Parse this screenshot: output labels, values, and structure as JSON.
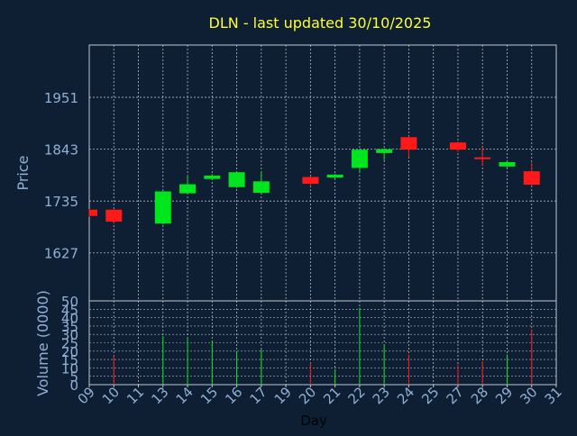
{
  "colors": {
    "background": "#0f1f33",
    "title": "#ffff33",
    "axis_text": "#8fb0d6",
    "frame": "#bfc7d1",
    "grid": "#b0b8c4",
    "up": "#00e61e",
    "down": "#ff1a1a"
  },
  "chart_data": {
    "type": "candlestick",
    "title": "DLN - last updated 30/10/2025",
    "price_panel": {
      "ylabel": "Price",
      "ylim": [
        1527,
        2060
      ],
      "yticks": [
        1627,
        1735,
        1843,
        1951
      ]
    },
    "volume_panel": {
      "ylabel": "Volume (0000)",
      "ylim": [
        0,
        50
      ],
      "yticks": [
        0,
        5,
        10,
        15,
        20,
        25,
        30,
        35,
        40,
        45,
        50
      ]
    },
    "xlabel": "Day",
    "xticks": [
      "09",
      "10",
      "11",
      "13",
      "14",
      "15",
      "16",
      "17",
      "19",
      "20",
      "21",
      "22",
      "23",
      "24",
      "25",
      "27",
      "28",
      "29",
      "30",
      "31"
    ],
    "grid": true,
    "candles": [
      {
        "day": "09",
        "open": 1717,
        "close": 1704,
        "high": 1718,
        "low": 1702,
        "volume": 0
      },
      {
        "day": "10",
        "open": 1717,
        "close": 1692,
        "high": 1718,
        "low": 1688,
        "volume": 17
      },
      {
        "day": "13",
        "open": 1688,
        "close": 1755,
        "high": 1757,
        "low": 1686,
        "volume": 29
      },
      {
        "day": "14",
        "open": 1751,
        "close": 1770,
        "high": 1788,
        "low": 1749,
        "volume": 28
      },
      {
        "day": "15",
        "open": 1781,
        "close": 1788,
        "high": 1791,
        "low": 1779,
        "volume": 26
      },
      {
        "day": "16",
        "open": 1764,
        "close": 1795,
        "high": 1797,
        "low": 1762,
        "volume": 20
      },
      {
        "day": "17",
        "open": 1752,
        "close": 1776,
        "high": 1796,
        "low": 1750,
        "volume": 21
      },
      {
        "day": "20",
        "open": 1785,
        "close": 1771,
        "high": 1787,
        "low": 1765,
        "volume": 13
      },
      {
        "day": "21",
        "open": 1784,
        "close": 1790,
        "high": 1792,
        "low": 1782,
        "volume": 9
      },
      {
        "day": "22",
        "open": 1804,
        "close": 1842,
        "high": 1844,
        "low": 1793,
        "volume": 46
      },
      {
        "day": "23",
        "open": 1835,
        "close": 1843,
        "high": 1845,
        "low": 1820,
        "volume": 24
      },
      {
        "day": "24",
        "open": 1868,
        "close": 1842,
        "high": 1870,
        "low": 1826,
        "volume": 18
      },
      {
        "day": "27",
        "open": 1857,
        "close": 1842,
        "high": 1859,
        "low": 1838,
        "volume": 12
      },
      {
        "day": "28",
        "open": 1826,
        "close": 1824,
        "high": 1848,
        "low": 1808,
        "volume": 14
      },
      {
        "day": "29",
        "open": 1807,
        "close": 1816,
        "high": 1818,
        "low": 1805,
        "volume": 18
      },
      {
        "day": "30",
        "open": 1797,
        "close": 1769,
        "high": 1815,
        "low": 1768,
        "volume": 33
      }
    ]
  }
}
